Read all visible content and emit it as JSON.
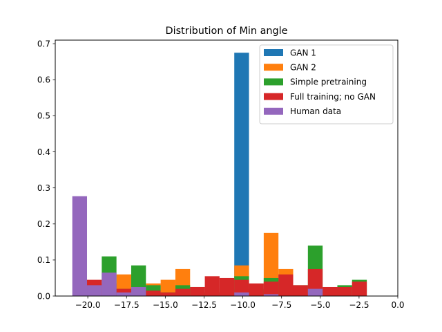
{
  "chart_data": {
    "type": "bar",
    "title": "Distribution of Min angle",
    "xlabel": "",
    "ylabel": "",
    "xlim": [
      -22.1,
      0.0
    ],
    "ylim": [
      0.0,
      0.71
    ],
    "xticks": [
      -20.0,
      -17.5,
      -15.0,
      -12.5,
      -10.0,
      -7.5,
      -5.0,
      -2.5,
      0.0
    ],
    "xtick_labels": [
      "−20.0",
      "−17.5",
      "−15.0",
      "−12.5",
      "−10.0",
      "−7.5",
      "−5.0",
      "−2.5",
      "0.0"
    ],
    "yticks": [
      0.0,
      0.1,
      0.2,
      0.3,
      0.4,
      0.5,
      0.6,
      0.7
    ],
    "ytick_labels": [
      "0.0",
      "0.1",
      "0.2",
      "0.3",
      "0.4",
      "0.5",
      "0.6",
      "0.7"
    ],
    "legend_position": "top-right",
    "grid": false,
    "bin_edges": [
      -21.0,
      -20.05,
      -19.1,
      -18.15,
      -17.2,
      -16.25,
      -15.3,
      -14.35,
      -13.4,
      -12.45,
      -11.5,
      -10.55,
      -9.6,
      -8.65,
      -7.7,
      -6.75,
      -5.8,
      -4.85,
      -3.9,
      -2.95,
      -2.0
    ],
    "series": [
      {
        "name": "GAN 1",
        "color": "#1f77b4",
        "values": [
          0,
          0,
          0,
          0,
          0,
          0,
          0,
          0,
          0,
          0,
          0,
          0.675,
          0,
          0,
          0,
          0,
          0,
          0,
          0,
          0
        ]
      },
      {
        "name": "GAN 2",
        "color": "#ff7f0e",
        "values": [
          0,
          0,
          0,
          0.06,
          0.03,
          0.035,
          0.045,
          0.075,
          0.01,
          0.005,
          0.01,
          0.085,
          0.015,
          0.175,
          0.075,
          0.005,
          0.01,
          0,
          0,
          0
        ]
      },
      {
        "name": "Simple pretraining",
        "color": "#2ca02c",
        "values": [
          0,
          0,
          0.11,
          0.02,
          0.085,
          0.03,
          0.01,
          0.03,
          0.025,
          0.01,
          0.02,
          0.055,
          0.02,
          0.05,
          0.05,
          0.03,
          0.14,
          0.02,
          0.03,
          0.045
        ]
      },
      {
        "name": "Full training; no GAN",
        "color": "#d62728",
        "values": [
          0,
          0.045,
          0.035,
          0.02,
          0.015,
          0.015,
          0.01,
          0.02,
          0.025,
          0.055,
          0.05,
          0.045,
          0.035,
          0.04,
          0.06,
          0.03,
          0.075,
          0.025,
          0.025,
          0.04
        ]
      },
      {
        "name": "Human data",
        "color": "#9467bd",
        "values": [
          0.277,
          0.03,
          0.065,
          0.01,
          0.025,
          0,
          0,
          0,
          0,
          0,
          0,
          0.01,
          0,
          0.005,
          0,
          0,
          0.02,
          0,
          0,
          0
        ]
      }
    ]
  }
}
